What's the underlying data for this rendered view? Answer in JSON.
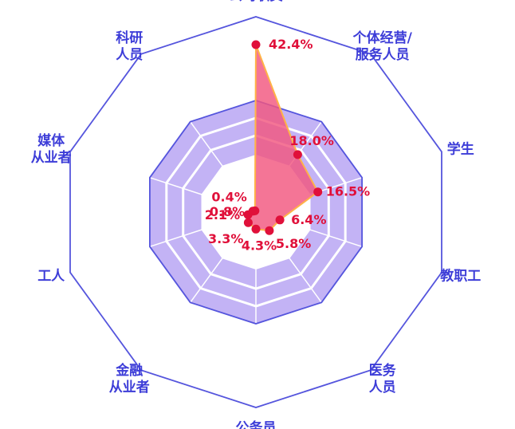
{
  "chart_data": {
    "type": "radar",
    "categories": [
      [
        "公司职员"
      ],
      [
        "个体经营/",
        "服务人员"
      ],
      [
        "学生"
      ],
      [
        "教职工"
      ],
      [
        "医务",
        "人员"
      ],
      [
        "公务员"
      ],
      [
        "金融",
        "从业者"
      ],
      [
        "工人"
      ],
      [
        "媒体",
        "从业者"
      ],
      [
        "科研",
        "人员"
      ]
    ],
    "series": [
      {
        "values": [
          42.4,
          18.0,
          16.5,
          6.4,
          5.8,
          4.3,
          3.3,
          2.1,
          0.8,
          0.4
        ],
        "value_labels": [
          "42.4%",
          "18.0%",
          "16.5%",
          "6.4%",
          "5.8%",
          "4.3%",
          "3.3%",
          "2.1%",
          "0.8%",
          "0.4%"
        ]
      }
    ],
    "rmax": 42.4,
    "colors": {
      "series_fill": "#f2577f",
      "series_stroke": "#ffb347",
      "marker": "#e0103a",
      "value_label": "#e0103a",
      "band": "#c3b3f5",
      "outline": "#5555dd",
      "category_label": "#3d3dd8"
    }
  }
}
